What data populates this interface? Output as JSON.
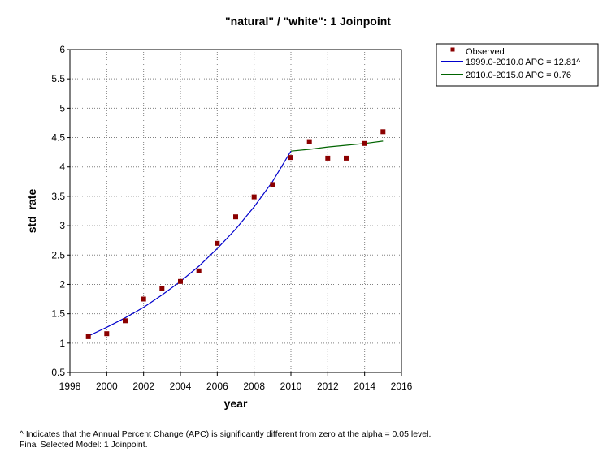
{
  "chart_data": {
    "type": "scatter",
    "title": "\"natural\" / \"white\": 1 Joinpoint",
    "xlabel": "year",
    "ylabel": "std_rate",
    "xlim": [
      1998,
      2016
    ],
    "ylim": [
      0.5,
      6
    ],
    "xticks": [
      1998,
      2000,
      2002,
      2004,
      2006,
      2008,
      2010,
      2012,
      2014,
      2016
    ],
    "yticks": [
      0.5,
      1,
      1.5,
      2,
      2.5,
      3,
      3.5,
      4,
      4.5,
      5,
      5.5,
      6
    ],
    "grid": true,
    "legend_position": "outside-top-right",
    "observed": {
      "name": "Observed",
      "color": "#8b0000",
      "x": [
        1999,
        2000,
        2001,
        2002,
        2003,
        2004,
        2005,
        2006,
        2007,
        2008,
        2009,
        2010,
        2011,
        2012,
        2013,
        2014,
        2015
      ],
      "y": [
        1.11,
        1.16,
        1.38,
        1.75,
        1.93,
        2.05,
        2.23,
        2.7,
        3.15,
        3.49,
        3.7,
        4.16,
        4.43,
        4.15,
        4.15,
        4.4,
        4.6
      ]
    },
    "segments": [
      {
        "name": "1999.0-2010.0 APC  = 12.81^",
        "color": "#0000cc",
        "x": [
          1999,
          2000,
          2001,
          2002,
          2003,
          2004,
          2005,
          2006,
          2007,
          2008,
          2009,
          2010
        ],
        "y": [
          1.12,
          1.27,
          1.43,
          1.61,
          1.82,
          2.05,
          2.31,
          2.61,
          2.94,
          3.32,
          3.75,
          4.27
        ]
      },
      {
        "name": "2010.0-2015.0 APC  =  0.76",
        "color": "#006400",
        "x": [
          2010,
          2011,
          2012,
          2013,
          2014,
          2015
        ],
        "y": [
          4.27,
          4.3,
          4.34,
          4.37,
          4.4,
          4.44
        ]
      }
    ]
  },
  "footnotes": {
    "line1": "^ Indicates that the Annual Percent Change (APC) is significantly different from zero at the alpha = 0.05 level.",
    "line2": "Final Selected Model: 1 Joinpoint."
  }
}
